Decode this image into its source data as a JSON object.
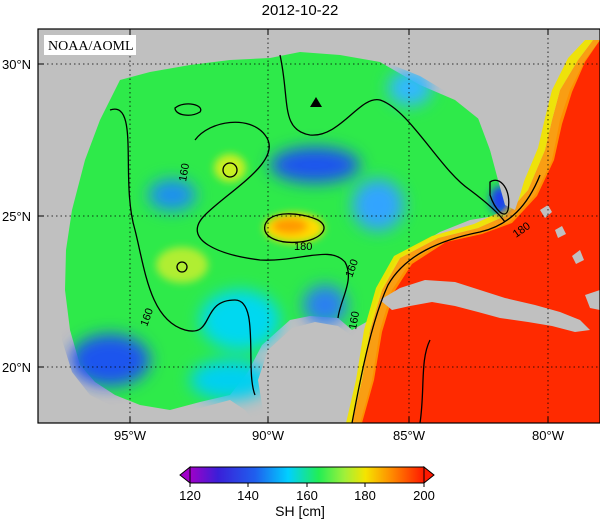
{
  "title": "2012-10-22",
  "credit": "NOAA/AOML",
  "map": {
    "lat_ticks": [
      "30°N",
      "25°N",
      "20°N"
    ],
    "lon_ticks": [
      "95°W",
      "90°W",
      "85°W",
      "80°W"
    ],
    "contour_labels": [
      "160",
      "160",
      "180",
      "160",
      "160",
      "180"
    ],
    "marker": "triangle"
  },
  "colorbar": {
    "title": "SH [cm]",
    "ticks": [
      "120",
      "140",
      "160",
      "180",
      "200"
    ]
  },
  "colors": {
    "land": "#c0c0c0",
    "low": "#8a00d4",
    "blue": "#1f55ee",
    "cyan": "#00d7ff",
    "green": "#33ee33",
    "yellow": "#f5e400",
    "orange": "#ff9a00",
    "red": "#ff1e00"
  }
}
